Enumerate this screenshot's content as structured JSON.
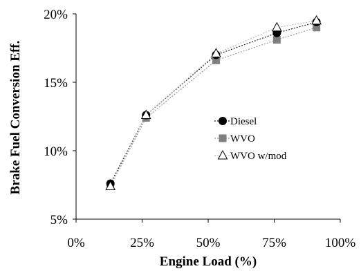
{
  "chart_data": {
    "type": "line",
    "xlabel": "Engine Load (%)",
    "ylabel": "Brake Fuel Conversion Eff.",
    "xlim": [
      0,
      100
    ],
    "ylim": [
      5,
      20
    ],
    "x_ticks": [
      "0%",
      "25%",
      "50%",
      "75%",
      "100%"
    ],
    "y_ticks": [
      "5%",
      "10%",
      "15%",
      "20%"
    ],
    "grid": false,
    "legend_position": "center-right",
    "series": [
      {
        "name": "Diesel",
        "marker": "circle",
        "color": "#000000",
        "line_color": "#222222",
        "x": [
          13,
          26.5,
          53,
          76,
          91
        ],
        "y": [
          7.6,
          12.6,
          17.0,
          18.6,
          19.4
        ]
      },
      {
        "name": "WVO",
        "marker": "square",
        "color": "#7f7f7f",
        "line_color": "#999999",
        "x": [
          13,
          26.5,
          53,
          76,
          91
        ],
        "y": [
          7.4,
          12.4,
          16.6,
          18.1,
          19.0
        ]
      },
      {
        "name": "WVO w/mod",
        "marker": "triangle",
        "color": "#ffffff",
        "line_color": "#bbbbbb",
        "x": [
          13,
          26.5,
          53,
          76,
          91
        ],
        "y": [
          7.4,
          12.6,
          17.1,
          19.0,
          19.5
        ]
      }
    ]
  }
}
